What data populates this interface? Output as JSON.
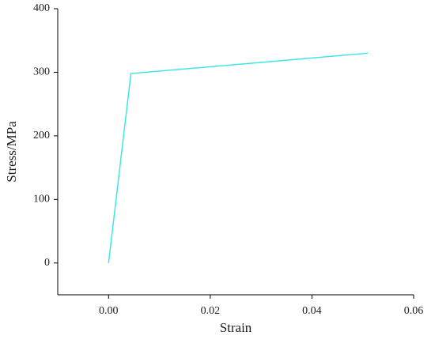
{
  "chart_data": {
    "type": "line",
    "x_label": "Strain",
    "y_label": "Stress/MPa",
    "x": [
      0,
      0.0044,
      0.051
    ],
    "series": [
      {
        "color": "#3ee6e6",
        "values": [
          0,
          298,
          330
        ]
      }
    ],
    "xlim": [
      -0.01,
      0.06
    ],
    "ylim": [
      -50,
      400
    ],
    "xticks": [
      {
        "value": 0,
        "label": "0.00"
      },
      {
        "value": 0.02,
        "label": "0.02"
      },
      {
        "value": 0.04,
        "label": "0.04"
      },
      {
        "value": 0.06,
        "label": "0.06"
      }
    ],
    "yticks": [
      0,
      100,
      200,
      300,
      400
    ]
  }
}
